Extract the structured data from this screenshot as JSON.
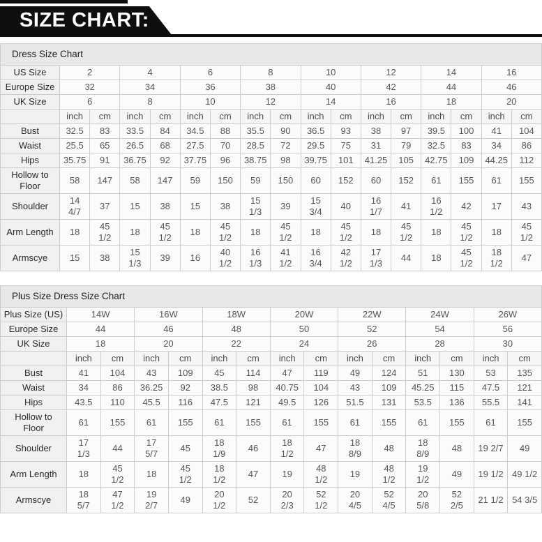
{
  "banner": {
    "title": "SIZE CHART:"
  },
  "colors": {
    "banner_bg": "#0e0e0e",
    "banner_text": "#ffffff",
    "title_row_bg": "#e8e8e8",
    "label_cell_bg": "#f1f1f1",
    "value_cell_bg": "#fbfbfb",
    "border": "#cccccc",
    "value_text": "#555555",
    "label_text": "#2a2a2a"
  },
  "tables": [
    {
      "title": "Dress Size Chart",
      "unit_labels": [
        "inch",
        "cm"
      ],
      "size_rows": [
        {
          "label": "US Size",
          "values": [
            "2",
            "4",
            "6",
            "8",
            "10",
            "12",
            "14",
            "16"
          ]
        },
        {
          "label": "Europe Size",
          "values": [
            "32",
            "34",
            "36",
            "38",
            "40",
            "42",
            "44",
            "46"
          ]
        },
        {
          "label": "UK Size",
          "values": [
            "6",
            "8",
            "10",
            "12",
            "14",
            "16",
            "18",
            "20"
          ]
        }
      ],
      "measure_rows": [
        {
          "label": "Bust",
          "values": [
            [
              "32.5",
              "83"
            ],
            [
              "33.5",
              "84"
            ],
            [
              "34.5",
              "88"
            ],
            [
              "35.5",
              "90"
            ],
            [
              "36.5",
              "93"
            ],
            [
              "38",
              "97"
            ],
            [
              "39.5",
              "100"
            ],
            [
              "41",
              "104"
            ]
          ]
        },
        {
          "label": "Waist",
          "values": [
            [
              "25.5",
              "65"
            ],
            [
              "26.5",
              "68"
            ],
            [
              "27.5",
              "70"
            ],
            [
              "28.5",
              "72"
            ],
            [
              "29.5",
              "75"
            ],
            [
              "31",
              "79"
            ],
            [
              "32.5",
              "83"
            ],
            [
              "34",
              "86"
            ]
          ]
        },
        {
          "label": "Hips",
          "values": [
            [
              "35.75",
              "91"
            ],
            [
              "36.75",
              "92"
            ],
            [
              "37.75",
              "96"
            ],
            [
              "38.75",
              "98"
            ],
            [
              "39.75",
              "101"
            ],
            [
              "41.25",
              "105"
            ],
            [
              "42.75",
              "109"
            ],
            [
              "44.25",
              "112"
            ]
          ]
        },
        {
          "label": "Hollow to\nFloor",
          "values": [
            [
              "58",
              "147"
            ],
            [
              "58",
              "147"
            ],
            [
              "59",
              "150"
            ],
            [
              "59",
              "150"
            ],
            [
              "60",
              "152"
            ],
            [
              "60",
              "152"
            ],
            [
              "61",
              "155"
            ],
            [
              "61",
              "155"
            ]
          ]
        },
        {
          "label": "Shoulder",
          "values": [
            [
              "14\n4/7",
              "37"
            ],
            [
              "15",
              "38"
            ],
            [
              "15",
              "38"
            ],
            [
              "15\n1/3",
              "39"
            ],
            [
              "15\n3/4",
              "40"
            ],
            [
              "16\n1/7",
              "41"
            ],
            [
              "16\n1/2",
              "42"
            ],
            [
              "17",
              "43"
            ]
          ]
        },
        {
          "label": "Arm Length",
          "values": [
            [
              "18",
              "45\n1/2"
            ],
            [
              "18",
              "45\n1/2"
            ],
            [
              "18",
              "45\n1/2"
            ],
            [
              "18",
              "45\n1/2"
            ],
            [
              "18",
              "45\n1/2"
            ],
            [
              "18",
              "45\n1/2"
            ],
            [
              "18",
              "45\n1/2"
            ],
            [
              "18",
              "45\n1/2"
            ]
          ]
        },
        {
          "label": "Armscye",
          "values": [
            [
              "15",
              "38"
            ],
            [
              "15\n1/3",
              "39"
            ],
            [
              "16",
              "40\n1/2"
            ],
            [
              "16\n1/3",
              "41\n1/2"
            ],
            [
              "16\n3/4",
              "42\n1/2"
            ],
            [
              "17\n1/3",
              "44"
            ],
            [
              "18",
              "45\n1/2"
            ],
            [
              "18\n1/2",
              "47"
            ]
          ]
        }
      ]
    },
    {
      "title": "Plus Size Dress Size Chart",
      "unit_labels": [
        "inch",
        "cm"
      ],
      "size_rows": [
        {
          "label": "Plus Size (US)",
          "values": [
            "14W",
            "16W",
            "18W",
            "20W",
            "22W",
            "24W",
            "26W"
          ]
        },
        {
          "label": "Europe Size",
          "values": [
            "44",
            "46",
            "48",
            "50",
            "52",
            "54",
            "56"
          ]
        },
        {
          "label": "UK Size",
          "values": [
            "18",
            "20",
            "22",
            "24",
            "26",
            "28",
            "30"
          ]
        }
      ],
      "measure_rows": [
        {
          "label": "Bust",
          "values": [
            [
              "41",
              "104"
            ],
            [
              "43",
              "109"
            ],
            [
              "45",
              "114"
            ],
            [
              "47",
              "119"
            ],
            [
              "49",
              "124"
            ],
            [
              "51",
              "130"
            ],
            [
              "53",
              "135"
            ]
          ]
        },
        {
          "label": "Waist",
          "values": [
            [
              "34",
              "86"
            ],
            [
              "36.25",
              "92"
            ],
            [
              "38.5",
              "98"
            ],
            [
              "40.75",
              "104"
            ],
            [
              "43",
              "109"
            ],
            [
              "45.25",
              "115"
            ],
            [
              "47.5",
              "121"
            ]
          ]
        },
        {
          "label": "Hips",
          "values": [
            [
              "43.5",
              "110"
            ],
            [
              "45.5",
              "116"
            ],
            [
              "47.5",
              "121"
            ],
            [
              "49.5",
              "126"
            ],
            [
              "51.5",
              "131"
            ],
            [
              "53.5",
              "136"
            ],
            [
              "55.5",
              "141"
            ]
          ]
        },
        {
          "label": "Hollow to\nFloor",
          "values": [
            [
              "61",
              "155"
            ],
            [
              "61",
              "155"
            ],
            [
              "61",
              "155"
            ],
            [
              "61",
              "155"
            ],
            [
              "61",
              "155"
            ],
            [
              "61",
              "155"
            ],
            [
              "61",
              "155"
            ]
          ]
        },
        {
          "label": "Shoulder",
          "values": [
            [
              "17\n1/3",
              "44"
            ],
            [
              "17\n5/7",
              "45"
            ],
            [
              "18\n1/9",
              "46"
            ],
            [
              "18\n1/2",
              "47"
            ],
            [
              "18\n8/9",
              "48"
            ],
            [
              "18\n8/9",
              "48"
            ],
            [
              "19 2/7",
              "49"
            ]
          ]
        },
        {
          "label": "Arm Length",
          "values": [
            [
              "18",
              "45\n1/2"
            ],
            [
              "18",
              "45\n1/2"
            ],
            [
              "18\n1/2",
              "47"
            ],
            [
              "19",
              "48\n1/2"
            ],
            [
              "19",
              "48\n1/2"
            ],
            [
              "19\n1/2",
              "49"
            ],
            [
              "19 1/2",
              "49 1/2"
            ]
          ]
        },
        {
          "label": "Armscye",
          "values": [
            [
              "18\n5/7",
              "47\n1/2"
            ],
            [
              "19\n2/7",
              "49"
            ],
            [
              "20\n1/2",
              "52"
            ],
            [
              "20\n2/3",
              "52\n1/2"
            ],
            [
              "20\n4/5",
              "52\n4/5"
            ],
            [
              "20\n5/8",
              "52\n2/5"
            ],
            [
              "21 1/2",
              "54 3/5"
            ]
          ]
        }
      ]
    }
  ]
}
